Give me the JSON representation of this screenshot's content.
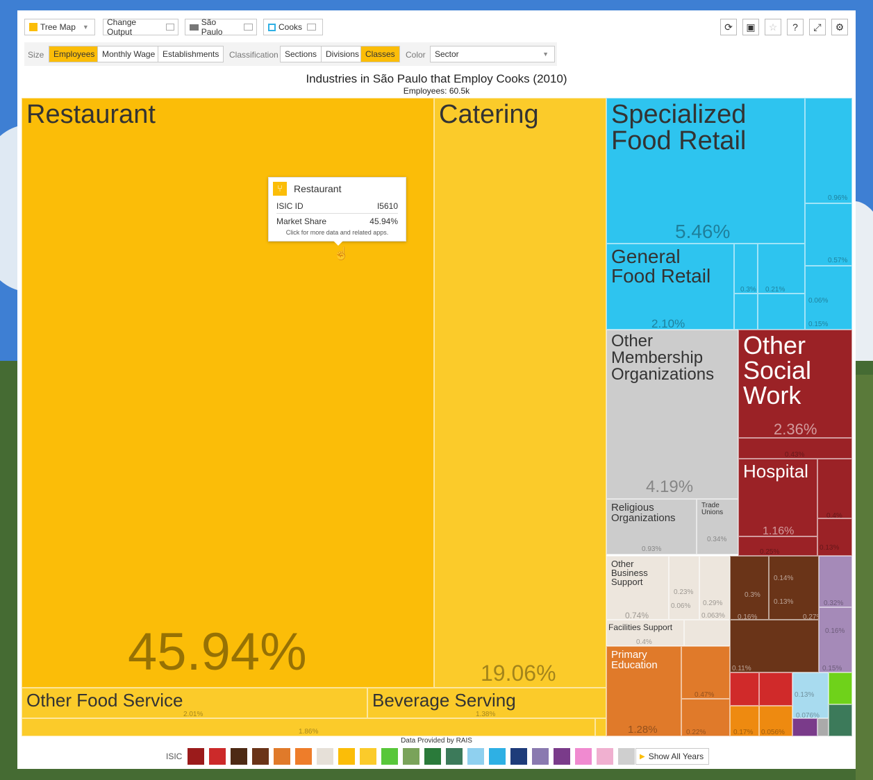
{
  "toolbar": {
    "viz_type": "Tree Map",
    "change_output": "Change Output",
    "location": "São Paulo",
    "occupation": "Cooks"
  },
  "filters": {
    "size_label": "Size",
    "size_options": [
      "Employees",
      "Monthly Wage",
      "Establishments"
    ],
    "size_selected": "Employees",
    "classification_label": "Classification",
    "classification_options": [
      "Sections",
      "Divisions",
      "Classes"
    ],
    "classification_selected": "Classes",
    "color_label": "Color",
    "color_value": "Sector"
  },
  "chart_data": {
    "type": "treemap",
    "title": "Industries in São Paulo that Employ Cooks (2010)",
    "subtitle": "Employees: 60.5k",
    "items": [
      {
        "name": "Restaurant",
        "share": "45.94%",
        "color": "#fbbd08"
      },
      {
        "name": "Catering",
        "share": "19.06%",
        "color": "#fbcb2a"
      },
      {
        "name": "Other Food Service",
        "share": "2.01%",
        "color": "#fbcb2a"
      },
      {
        "name": "Beverage Serving",
        "share": "1.38%",
        "color": "#fbcb2a"
      },
      {
        "name": "",
        "share": "1.86%",
        "color": "#fbcb2a"
      },
      {
        "name": "Specialized Food Retail",
        "share": "5.46%",
        "color": "#2ec4ef"
      },
      {
        "name": "General Food Retail",
        "share": "2.10%",
        "color": "#2ec4ef"
      },
      {
        "name": "Other Membership Organizations",
        "share": "4.19%",
        "color": "#cccccc"
      },
      {
        "name": "Religious Organizations",
        "share": "0.93%",
        "color": "#cccccc"
      },
      {
        "name": "Trade Unions",
        "share": "0.34%",
        "color": "#cccccc"
      },
      {
        "name": "Other Social Work",
        "share": "2.36%",
        "color": "#9b2226"
      },
      {
        "name": "Hospital",
        "share": "1.16%",
        "color": "#9b2226"
      },
      {
        "name": "Other Business Support",
        "share": "0.74%",
        "color": "#ede6dd"
      },
      {
        "name": "Facilities Support",
        "share": "0.4%",
        "color": "#ede6dd"
      },
      {
        "name": "Primary Education",
        "share": "1.28%",
        "color": "#e07a2a"
      }
    ],
    "minor_labels": [
      "0.96%",
      "0.57%",
      "0.3%",
      "0.21%",
      "0.06%",
      "0.15%",
      "0.43%",
      "0.4%",
      "0.25%",
      "0.13%",
      "0.23%",
      "0.29%",
      "0.06%",
      "0.063%",
      "0.14%",
      "0.3%",
      "0.13%",
      "0.16%",
      "0.27%",
      "0.32%",
      "0.16%",
      "0.15%",
      "0.11%",
      "0.13%",
      "0.076%",
      "0.47%",
      "0.22%",
      "0.17%",
      "0.056%"
    ]
  },
  "tooltip": {
    "title": "Restaurant",
    "isic_label": "ISIC ID",
    "isic_value": "I5610",
    "share_label": "Market Share",
    "share_value": "45.94%",
    "hint": "Click for more data and related apps."
  },
  "footer": {
    "source": "Data Provided by RAIS",
    "isic_label": "ISIC",
    "show_all": "Show All Years",
    "sector_colors": [
      "#9b1b1b",
      "#cc2a2a",
      "#4d2a14",
      "#6a3418",
      "#e07a2a",
      "#ee7d2a",
      "#e6e0d8",
      "#fbbd08",
      "#fbcb2a",
      "#58c73a",
      "#7aa35a",
      "#2a7a3a",
      "#3c7a5a",
      "#8fd0ef",
      "#2eb0e4",
      "#1e3c7a",
      "#8a7ab0",
      "#7a3b8a",
      "#f08ad0",
      "#f0b0d0",
      "#cfcfcf",
      "#333333"
    ]
  }
}
